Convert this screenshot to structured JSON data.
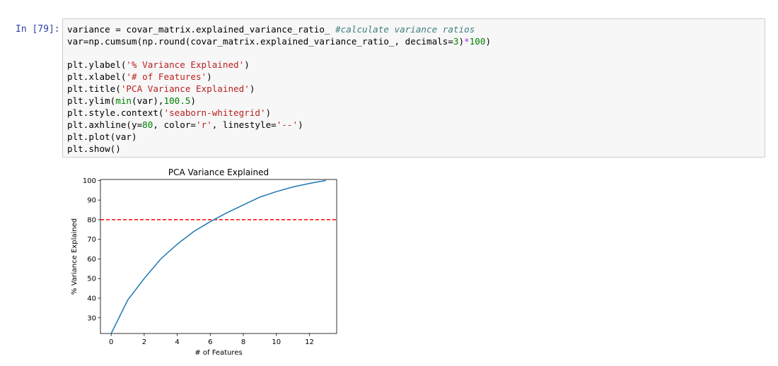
{
  "cell": {
    "prompt": "In [79]:",
    "code": {
      "l1_var": "variance = covar_matrix.explained_variance_ratio_ ",
      "l1_comment": "#calculate variance ratios",
      "l2_a": "var=np.cumsum(np.round(covar_matrix.explained_variance_ratio_, decimals=",
      "l2_n1": "3",
      "l2_b": ")",
      "l2_op": "*",
      "l2_n2": "100",
      "l2_c": ")",
      "l3_a": "plt.ylabel(",
      "l3_s": "'% Variance Explained'",
      "l3_b": ")",
      "l4_a": "plt.xlabel(",
      "l4_s": "'# of Features'",
      "l4_b": ")",
      "l5_a": "plt.title(",
      "l5_s": "'PCA Variance Explained'",
      "l5_b": ")",
      "l6_a": "plt.ylim(",
      "l6_fn": "min",
      "l6_b": "(var),",
      "l6_n": "100.5",
      "l6_c": ")",
      "l7_a": "plt.style.context(",
      "l7_s": "'seaborn-whitegrid'",
      "l7_b": ")",
      "l8_a": "plt.axhline(y=",
      "l8_n": "80",
      "l8_b": ", color=",
      "l8_s1": "'r'",
      "l8_c": ", linestyle=",
      "l8_s2": "'--'",
      "l8_d": ")",
      "l9": "plt.plot(var)",
      "l10": "plt.show()"
    }
  },
  "chart_data": {
    "type": "line",
    "title": "PCA Variance Explained",
    "xlabel": "# of Features",
    "ylabel": "% Variance Explained",
    "x": [
      0,
      1,
      2,
      3,
      4,
      5,
      6,
      7,
      8,
      9,
      10,
      11,
      12,
      13
    ],
    "y": [
      22.0,
      39.0,
      50.0,
      60.0,
      67.5,
      74.0,
      79.0,
      83.5,
      87.5,
      91.5,
      94.3,
      96.7,
      98.5,
      100.0
    ],
    "xlim": [
      -0.65,
      13.65
    ],
    "ylim": [
      22.0,
      100.5
    ],
    "xticks": [
      0,
      2,
      4,
      6,
      8,
      10,
      12
    ],
    "yticks": [
      30,
      40,
      50,
      60,
      70,
      80,
      90,
      100
    ],
    "axhline": {
      "y": 80,
      "color": "#ff0000",
      "linestyle": "dashed"
    },
    "line_color": "#1f77b4",
    "grid": false
  }
}
